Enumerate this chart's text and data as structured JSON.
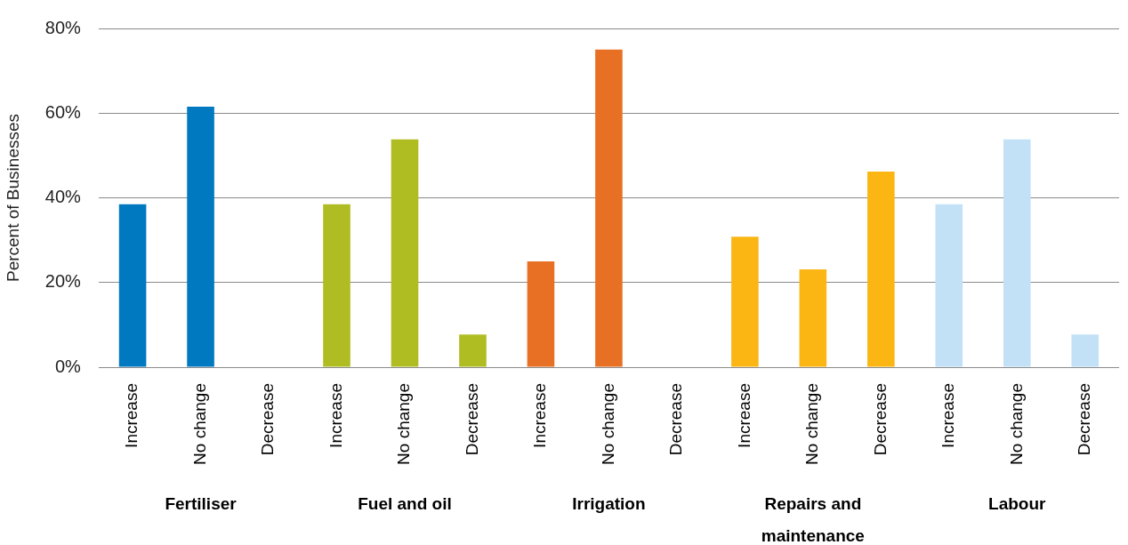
{
  "chart_data": {
    "type": "bar",
    "ylabel": "Percent of Businesses",
    "categories": [
      "Increase",
      "No change",
      "Decrease",
      "Increase",
      "No change",
      "Decrease",
      "Increase",
      "No change",
      "Decrease",
      "Increase",
      "No change",
      "Decrease",
      "Increase",
      "No change",
      "Decrease"
    ],
    "values": [
      38.5,
      61.5,
      0,
      38.5,
      53.8,
      7.7,
      25,
      75,
      0,
      30.8,
      23.1,
      46.2,
      38.5,
      53.8,
      7.7
    ],
    "colors": [
      "#0079c1",
      "#0079c1",
      "#0079c1",
      "#b0bd22",
      "#b0bd22",
      "#b0bd22",
      "#e87024",
      "#e87024",
      "#e87024",
      "#fbb614",
      "#fbb614",
      "#fbb614",
      "#c2e1f6",
      "#c2e1f6",
      "#c2e1f6"
    ],
    "ylim": [
      0,
      80
    ],
    "yticks": [
      {
        "value": 0,
        "label": "0%"
      },
      {
        "value": 20,
        "label": "20%"
      },
      {
        "value": 40,
        "label": "40%"
      },
      {
        "value": 60,
        "label": "60%"
      },
      {
        "value": 80,
        "label": "80%"
      }
    ],
    "grid": "y",
    "legend": false,
    "annotations": [
      "Fertiliser",
      "Fuel and oil",
      "Irrigation",
      "Repairs and maintenance",
      "Labour"
    ]
  }
}
